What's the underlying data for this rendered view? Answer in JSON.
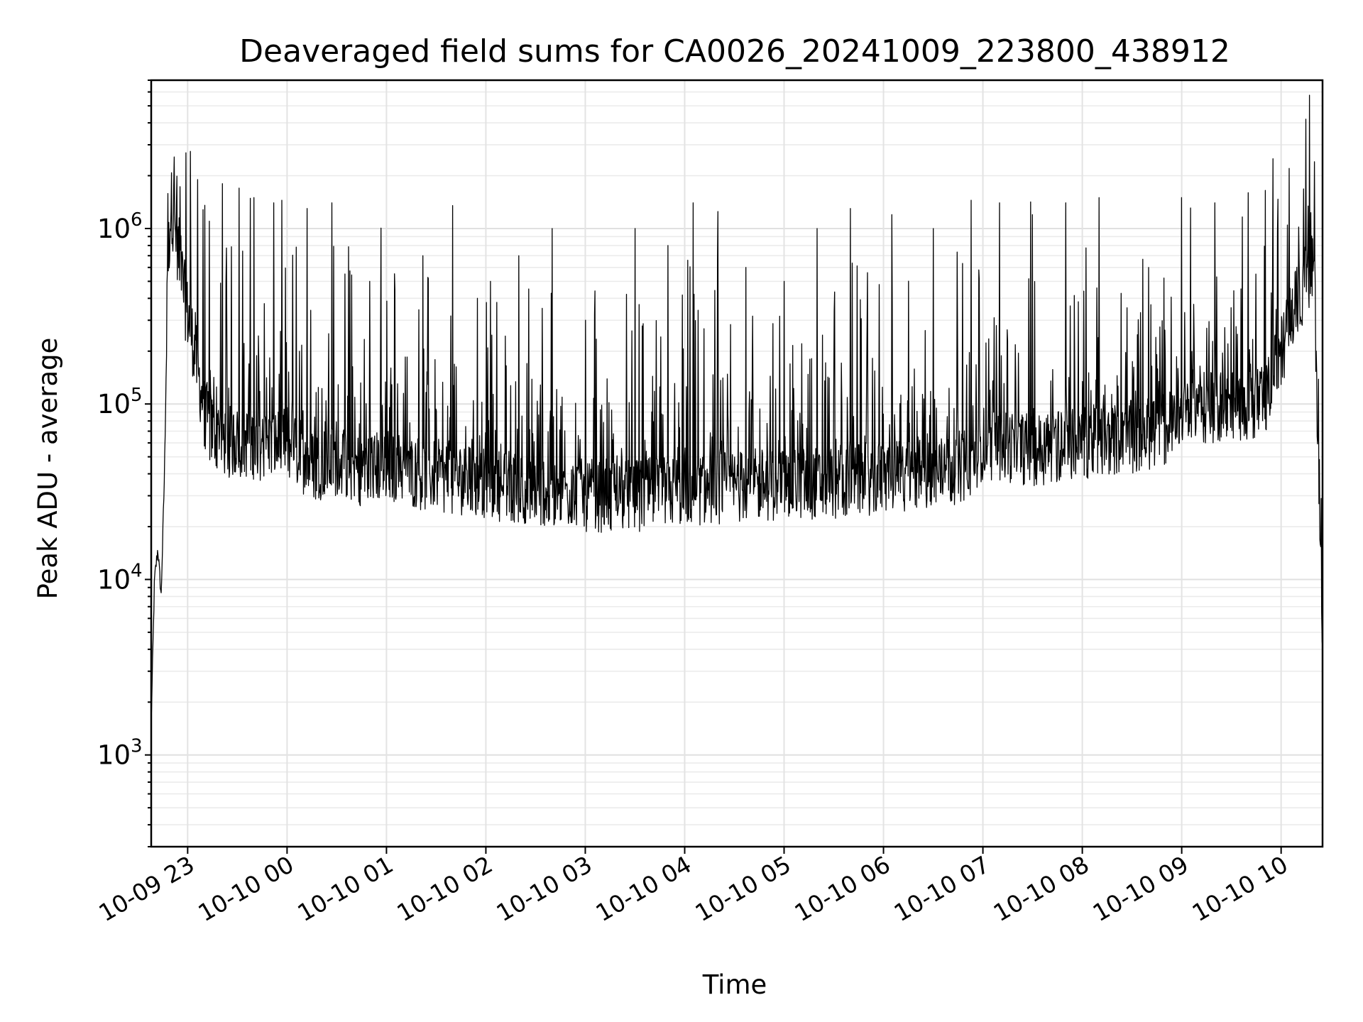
{
  "chart_data": {
    "type": "line",
    "title": "Deaveraged field sums for CA0026_20241009_223800_438912",
    "xlabel": "Time",
    "ylabel": "Peak ADU - average",
    "x_type": "datetime",
    "xlim": [
      "2024-10-09T22:38:00",
      "2024-10-10T10:25:00"
    ],
    "x_ticks": [
      "10-09 23",
      "10-10 00",
      "10-10 01",
      "10-10 02",
      "10-10 03",
      "10-10 04",
      "10-10 05",
      "10-10 06",
      "10-10 07",
      "10-10 08",
      "10-10 09",
      "10-10 10"
    ],
    "y_scale": "log",
    "ylim": [
      300,
      7000000
    ],
    "y_ticks": [
      {
        "base": "10",
        "exp": "3"
      },
      {
        "base": "10",
        "exp": "4"
      },
      {
        "base": "10",
        "exp": "5"
      },
      {
        "base": "10",
        "exp": "6"
      }
    ],
    "grid": true,
    "series": [
      {
        "color": "#000000",
        "x": [
          "2024-10-09T22:38:00",
          "2024-10-09T22:40:00",
          "2024-10-09T22:42:00",
          "2024-10-09T22:44:00",
          "2024-10-09T22:46:00",
          "2024-10-09T22:47:00",
          "2024-10-09T22:48:00",
          "2024-10-09T22:50:00",
          "2024-10-09T22:53:00",
          "2024-10-09T22:55:00",
          "2024-10-09T22:57:00",
          "2024-10-09T22:59:00",
          "2024-10-09T23:01:00",
          "2024-10-09T23:05:00",
          "2024-10-09T23:10:00",
          "2024-10-09T23:15:00",
          "2024-10-09T23:20:00",
          "2024-10-09T23:25:00",
          "2024-10-09T23:30:00",
          "2024-10-09T23:40:00",
          "2024-10-09T23:50:00",
          "2024-10-10T00:00:00",
          "2024-10-10T00:15:00",
          "2024-10-10T00:30:00",
          "2024-10-10T00:45:00",
          "2024-10-10T01:00:00",
          "2024-10-10T01:20:00",
          "2024-10-10T01:40:00",
          "2024-10-10T02:00:00",
          "2024-10-10T02:30:00",
          "2024-10-10T03:00:00",
          "2024-10-10T03:30:00",
          "2024-10-10T04:00:00",
          "2024-10-10T04:30:00",
          "2024-10-10T05:00:00",
          "2024-10-10T05:30:00",
          "2024-10-10T06:00:00",
          "2024-10-10T06:30:00",
          "2024-10-10T06:50:00",
          "2024-10-10T07:00:00",
          "2024-10-10T07:30:00",
          "2024-10-10T08:00:00",
          "2024-10-10T08:30:00",
          "2024-10-10T08:50:00",
          "2024-10-10T09:00:00",
          "2024-10-10T09:30:00",
          "2024-10-10T09:50:00",
          "2024-10-10T10:00:00",
          "2024-10-10T10:10:00",
          "2024-10-10T10:20:00",
          "2024-10-10T10:25:00"
        ],
        "y": [
          1500,
          10000,
          15000,
          8000,
          40000,
          150000,
          600000,
          1400000,
          900000,
          700000,
          500000,
          350000,
          300000,
          180000,
          90000,
          70000,
          65000,
          60000,
          62000,
          60000,
          58000,
          60000,
          45000,
          48000,
          42000,
          45000,
          40000,
          38000,
          35000,
          33000,
          30000,
          30000,
          32000,
          34000,
          35000,
          36000,
          38000,
          40000,
          45000,
          60000,
          55000,
          60000,
          65000,
          70000,
          90000,
          100000,
          100000,
          200000,
          400000,
          600000,
          4000
        ]
      }
    ],
    "spikes": [
      [
        "2024-10-09T22:59:00",
        2700000
      ],
      [
        "2024-10-09T23:06:00",
        1900000
      ],
      [
        "2024-10-09T23:13:00",
        1100000
      ],
      [
        "2024-10-09T23:21:00",
        1800000
      ],
      [
        "2024-10-09T23:31:00",
        1700000
      ],
      [
        "2024-10-09T23:40:00",
        1500000
      ],
      [
        "2024-10-09T23:52:00",
        1400000
      ],
      [
        "2024-10-10T00:12:00",
        1300000
      ],
      [
        "2024-10-10T00:27:00",
        1400000
      ],
      [
        "2024-10-10T00:50:00",
        500000
      ],
      [
        "2024-10-10T01:05:00",
        450000
      ],
      [
        "2024-10-10T01:22:00",
        700000
      ],
      [
        "2024-10-10T01:40:00",
        1350000
      ],
      [
        "2024-10-10T01:55:00",
        400000
      ],
      [
        "2024-10-10T02:20:00",
        700000
      ],
      [
        "2024-10-10T02:40:00",
        1000000
      ],
      [
        "2024-10-10T03:00:00",
        300000
      ],
      [
        "2024-10-10T03:30:00",
        1000000
      ],
      [
        "2024-10-10T03:50:00",
        800000
      ],
      [
        "2024-10-10T04:05:00",
        1400000
      ],
      [
        "2024-10-10T04:20:00",
        1250000
      ],
      [
        "2024-10-10T04:37:00",
        600000
      ],
      [
        "2024-10-10T05:00:00",
        500000
      ],
      [
        "2024-10-10T05:20:00",
        1000000
      ],
      [
        "2024-10-10T05:40:00",
        1300000
      ],
      [
        "2024-10-10T06:05:00",
        1200000
      ],
      [
        "2024-10-10T06:30:00",
        1000000
      ],
      [
        "2024-10-10T06:53:00",
        1450000
      ],
      [
        "2024-10-10T07:10:00",
        1400000
      ],
      [
        "2024-10-10T07:30:00",
        1200000
      ],
      [
        "2024-10-10T07:50:00",
        1400000
      ],
      [
        "2024-10-10T08:10:00",
        1500000
      ],
      [
        "2024-10-10T08:40:00",
        600000
      ],
      [
        "2024-10-10T09:00:00",
        1500000
      ],
      [
        "2024-10-10T09:20:00",
        1400000
      ],
      [
        "2024-10-10T09:40:00",
        1600000
      ],
      [
        "2024-10-10T09:55:00",
        2500000
      ],
      [
        "2024-10-10T10:05:00",
        2200000
      ],
      [
        "2024-10-10T10:15:00",
        4200000
      ],
      [
        "2024-10-10T10:20:00",
        2400000
      ]
    ]
  }
}
